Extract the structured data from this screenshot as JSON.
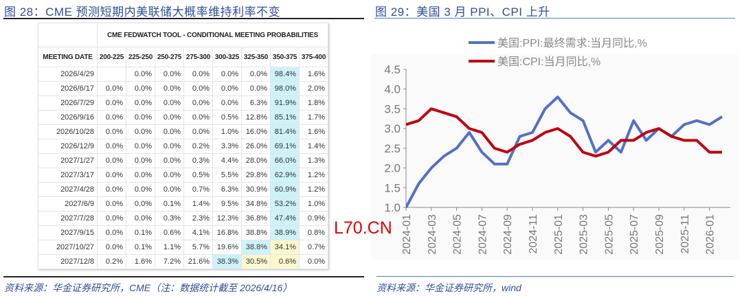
{
  "left": {
    "title": "图 28：CME 预测短期内美联储大概率维持利率不变",
    "source": "资料来源：华金证券研究所，CME（注：数据统计截至 2026/4/16）",
    "table": {
      "title": "CME FEDWATCH TOOL - CONDITIONAL MEETING PROBABILITIES",
      "columns": [
        "MEETING DATE",
        "200-225",
        "225-250",
        "250-275",
        "275-300",
        "300-325",
        "325-350",
        "350-375",
        "375-400"
      ],
      "rows": [
        [
          "2026/4/29",
          "",
          "0.0%",
          "0.0%",
          "0.0%",
          "0.0%",
          "0.0%",
          "98.4%",
          "1.6%"
        ],
        [
          "2026/6/17",
          "0.0%",
          "0.0%",
          "0.0%",
          "0.0%",
          "0.0%",
          "0.0%",
          "98.0%",
          "2.0%"
        ],
        [
          "2026/7/29",
          "0.0%",
          "0.0%",
          "0.0%",
          "0.0%",
          "0.0%",
          "6.3%",
          "91.9%",
          "1.8%"
        ],
        [
          "2026/9/16",
          "0.0%",
          "0.0%",
          "0.0%",
          "0.0%",
          "0.5%",
          "12.8%",
          "85.1%",
          "1.7%"
        ],
        [
          "2026/10/28",
          "0.0%",
          "0.0%",
          "0.0%",
          "0.0%",
          "1.0%",
          "16.0%",
          "81.4%",
          "1.6%"
        ],
        [
          "2026/12/9",
          "0.0%",
          "0.0%",
          "0.0%",
          "0.2%",
          "3.3%",
          "26.0%",
          "69.1%",
          "1.4%"
        ],
        [
          "2027/1/27",
          "0.0%",
          "0.0%",
          "0.0%",
          "0.3%",
          "4.4%",
          "28.0%",
          "66.0%",
          "1.3%"
        ],
        [
          "2027/3/17",
          "0.0%",
          "0.0%",
          "0.0%",
          "0.5%",
          "5.5%",
          "29.8%",
          "62.9%",
          "1.2%"
        ],
        [
          "2027/4/28",
          "0.0%",
          "0.0%",
          "0.0%",
          "0.7%",
          "6.3%",
          "30.9%",
          "60.9%",
          "1.2%"
        ],
        [
          "2027/6/9",
          "0.0%",
          "0.0%",
          "0.1%",
          "1.4%",
          "9.5%",
          "34.8%",
          "53.2%",
          "1.0%"
        ],
        [
          "2027/7/28",
          "0.0%",
          "0.0%",
          "0.3%",
          "2.3%",
          "12.3%",
          "36.8%",
          "47.4%",
          "0.9%"
        ],
        [
          "2027/9/15",
          "0.0%",
          "0.1%",
          "0.6%",
          "4.1%",
          "16.8%",
          "38.8%",
          "38.9%",
          "0.8%"
        ],
        [
          "2027/10/27",
          "0.0%",
          "0.1%",
          "1.1%",
          "5.7%",
          "19.6%",
          "38.8%",
          "34.1%",
          "0.7%"
        ],
        [
          "2027/12/8",
          "0.2%",
          "1.6%",
          "7.2%",
          "21.6%",
          "38.3%",
          "30.5%",
          "0.6%",
          "0.0%"
        ]
      ],
      "highlights": {
        "blue": [
          [
            0,
            7
          ],
          [
            1,
            7
          ],
          [
            2,
            7
          ],
          [
            3,
            7
          ],
          [
            4,
            7
          ],
          [
            5,
            7
          ],
          [
            6,
            7
          ],
          [
            7,
            7
          ],
          [
            8,
            7
          ],
          [
            9,
            7
          ],
          [
            10,
            7
          ],
          [
            11,
            7
          ],
          [
            12,
            6
          ],
          [
            13,
            5
          ]
        ],
        "yellow": [
          [
            12,
            7
          ],
          [
            13,
            6
          ],
          [
            13,
            7
          ]
        ]
      },
      "colors": {
        "blue": "#cdf2f9",
        "yellow": "#fbf8cf"
      }
    }
  },
  "right": {
    "title": "图 29：美国 3 月 PPI、CPI 上升",
    "source": "资料来源：华金证券研究所，wind"
  },
  "watermark": "L70.CN",
  "chart_data": {
    "type": "line",
    "x": [
      "2024-01",
      "2024-02",
      "2024-03",
      "2024-04",
      "2024-05",
      "2024-06",
      "2024-07",
      "2024-08",
      "2024-09",
      "2024-10",
      "2024-11",
      "2024-12",
      "2025-01",
      "2025-02",
      "2025-03",
      "2025-04",
      "2025-05",
      "2025-06",
      "2025-07",
      "2025-08",
      "2025-09",
      "2025-10",
      "2025-11",
      "2025-12",
      "2026-01",
      "2026-02"
    ],
    "x_tick_labels": [
      "2024-01",
      "2024-03",
      "2024-05",
      "2024-07",
      "2024-09",
      "2024-11",
      "2025-01",
      "2025-03",
      "2025-05",
      "2025-07",
      "2025-09",
      "2025-11",
      "2026-01"
    ],
    "y_tick_labels": [
      "1.0",
      "1.5",
      "2.0",
      "2.5",
      "3.0",
      "3.5",
      "4.0",
      "4.5"
    ],
    "ylim": [
      1.0,
      4.5
    ],
    "grid": false,
    "legend": "top",
    "series": [
      {
        "name": "美国:PPI:最终需求:当月同比,%",
        "color": "#5470c6",
        "values": [
          1.0,
          1.6,
          2.0,
          2.3,
          2.5,
          2.9,
          2.4,
          2.1,
          2.1,
          2.8,
          2.9,
          3.5,
          3.8,
          3.4,
          3.2,
          2.4,
          2.7,
          2.4,
          3.2,
          2.7,
          3.0,
          2.8,
          3.1,
          3.2,
          3.1,
          3.3
        ]
      },
      {
        "name": "美国:CPI:当月同比,%",
        "color": "#c00010",
        "values": [
          3.1,
          3.2,
          3.5,
          3.4,
          3.3,
          3.0,
          2.9,
          2.5,
          2.4,
          2.6,
          2.7,
          2.9,
          3.0,
          2.8,
          2.4,
          2.3,
          2.4,
          2.7,
          2.7,
          2.9,
          3.0,
          2.8,
          2.7,
          2.7,
          2.4,
          2.4
        ]
      }
    ]
  }
}
